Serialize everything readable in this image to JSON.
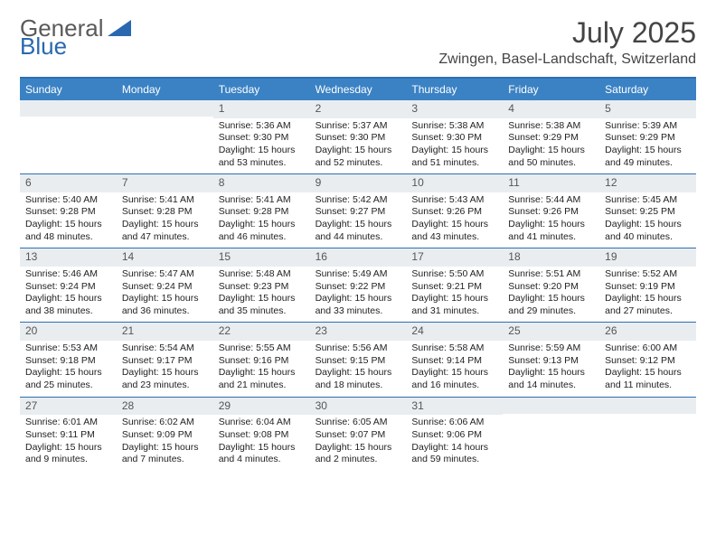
{
  "logo": {
    "text1": "General",
    "text2": "Blue",
    "color1": "#5a5a5a",
    "color2": "#2968b0",
    "triangle_color": "#2968b0"
  },
  "title": "July 2025",
  "location": "Zwingen, Basel-Landschaft, Switzerland",
  "header_bg": "#3b82c4",
  "header_text_color": "#ffffff",
  "rule_color": "#2f6fb3",
  "daynum_bg": "#e9edf0",
  "day_names": [
    "Sunday",
    "Monday",
    "Tuesday",
    "Wednesday",
    "Thursday",
    "Friday",
    "Saturday"
  ],
  "weeks": [
    [
      null,
      null,
      {
        "n": "1",
        "sr": "5:36 AM",
        "ss": "9:30 PM",
        "dl": "15 hours and 53 minutes."
      },
      {
        "n": "2",
        "sr": "5:37 AM",
        "ss": "9:30 PM",
        "dl": "15 hours and 52 minutes."
      },
      {
        "n": "3",
        "sr": "5:38 AM",
        "ss": "9:30 PM",
        "dl": "15 hours and 51 minutes."
      },
      {
        "n": "4",
        "sr": "5:38 AM",
        "ss": "9:29 PM",
        "dl": "15 hours and 50 minutes."
      },
      {
        "n": "5",
        "sr": "5:39 AM",
        "ss": "9:29 PM",
        "dl": "15 hours and 49 minutes."
      }
    ],
    [
      {
        "n": "6",
        "sr": "5:40 AM",
        "ss": "9:28 PM",
        "dl": "15 hours and 48 minutes."
      },
      {
        "n": "7",
        "sr": "5:41 AM",
        "ss": "9:28 PM",
        "dl": "15 hours and 47 minutes."
      },
      {
        "n": "8",
        "sr": "5:41 AM",
        "ss": "9:28 PM",
        "dl": "15 hours and 46 minutes."
      },
      {
        "n": "9",
        "sr": "5:42 AM",
        "ss": "9:27 PM",
        "dl": "15 hours and 44 minutes."
      },
      {
        "n": "10",
        "sr": "5:43 AM",
        "ss": "9:26 PM",
        "dl": "15 hours and 43 minutes."
      },
      {
        "n": "11",
        "sr": "5:44 AM",
        "ss": "9:26 PM",
        "dl": "15 hours and 41 minutes."
      },
      {
        "n": "12",
        "sr": "5:45 AM",
        "ss": "9:25 PM",
        "dl": "15 hours and 40 minutes."
      }
    ],
    [
      {
        "n": "13",
        "sr": "5:46 AM",
        "ss": "9:24 PM",
        "dl": "15 hours and 38 minutes."
      },
      {
        "n": "14",
        "sr": "5:47 AM",
        "ss": "9:24 PM",
        "dl": "15 hours and 36 minutes."
      },
      {
        "n": "15",
        "sr": "5:48 AM",
        "ss": "9:23 PM",
        "dl": "15 hours and 35 minutes."
      },
      {
        "n": "16",
        "sr": "5:49 AM",
        "ss": "9:22 PM",
        "dl": "15 hours and 33 minutes."
      },
      {
        "n": "17",
        "sr": "5:50 AM",
        "ss": "9:21 PM",
        "dl": "15 hours and 31 minutes."
      },
      {
        "n": "18",
        "sr": "5:51 AM",
        "ss": "9:20 PM",
        "dl": "15 hours and 29 minutes."
      },
      {
        "n": "19",
        "sr": "5:52 AM",
        "ss": "9:19 PM",
        "dl": "15 hours and 27 minutes."
      }
    ],
    [
      {
        "n": "20",
        "sr": "5:53 AM",
        "ss": "9:18 PM",
        "dl": "15 hours and 25 minutes."
      },
      {
        "n": "21",
        "sr": "5:54 AM",
        "ss": "9:17 PM",
        "dl": "15 hours and 23 minutes."
      },
      {
        "n": "22",
        "sr": "5:55 AM",
        "ss": "9:16 PM",
        "dl": "15 hours and 21 minutes."
      },
      {
        "n": "23",
        "sr": "5:56 AM",
        "ss": "9:15 PM",
        "dl": "15 hours and 18 minutes."
      },
      {
        "n": "24",
        "sr": "5:58 AM",
        "ss": "9:14 PM",
        "dl": "15 hours and 16 minutes."
      },
      {
        "n": "25",
        "sr": "5:59 AM",
        "ss": "9:13 PM",
        "dl": "15 hours and 14 minutes."
      },
      {
        "n": "26",
        "sr": "6:00 AM",
        "ss": "9:12 PM",
        "dl": "15 hours and 11 minutes."
      }
    ],
    [
      {
        "n": "27",
        "sr": "6:01 AM",
        "ss": "9:11 PM",
        "dl": "15 hours and 9 minutes."
      },
      {
        "n": "28",
        "sr": "6:02 AM",
        "ss": "9:09 PM",
        "dl": "15 hours and 7 minutes."
      },
      {
        "n": "29",
        "sr": "6:04 AM",
        "ss": "9:08 PM",
        "dl": "15 hours and 4 minutes."
      },
      {
        "n": "30",
        "sr": "6:05 AM",
        "ss": "9:07 PM",
        "dl": "15 hours and 2 minutes."
      },
      {
        "n": "31",
        "sr": "6:06 AM",
        "ss": "9:06 PM",
        "dl": "14 hours and 59 minutes."
      },
      null,
      null
    ]
  ],
  "labels": {
    "sunrise": "Sunrise:",
    "sunset": "Sunset:",
    "daylight": "Daylight:"
  }
}
